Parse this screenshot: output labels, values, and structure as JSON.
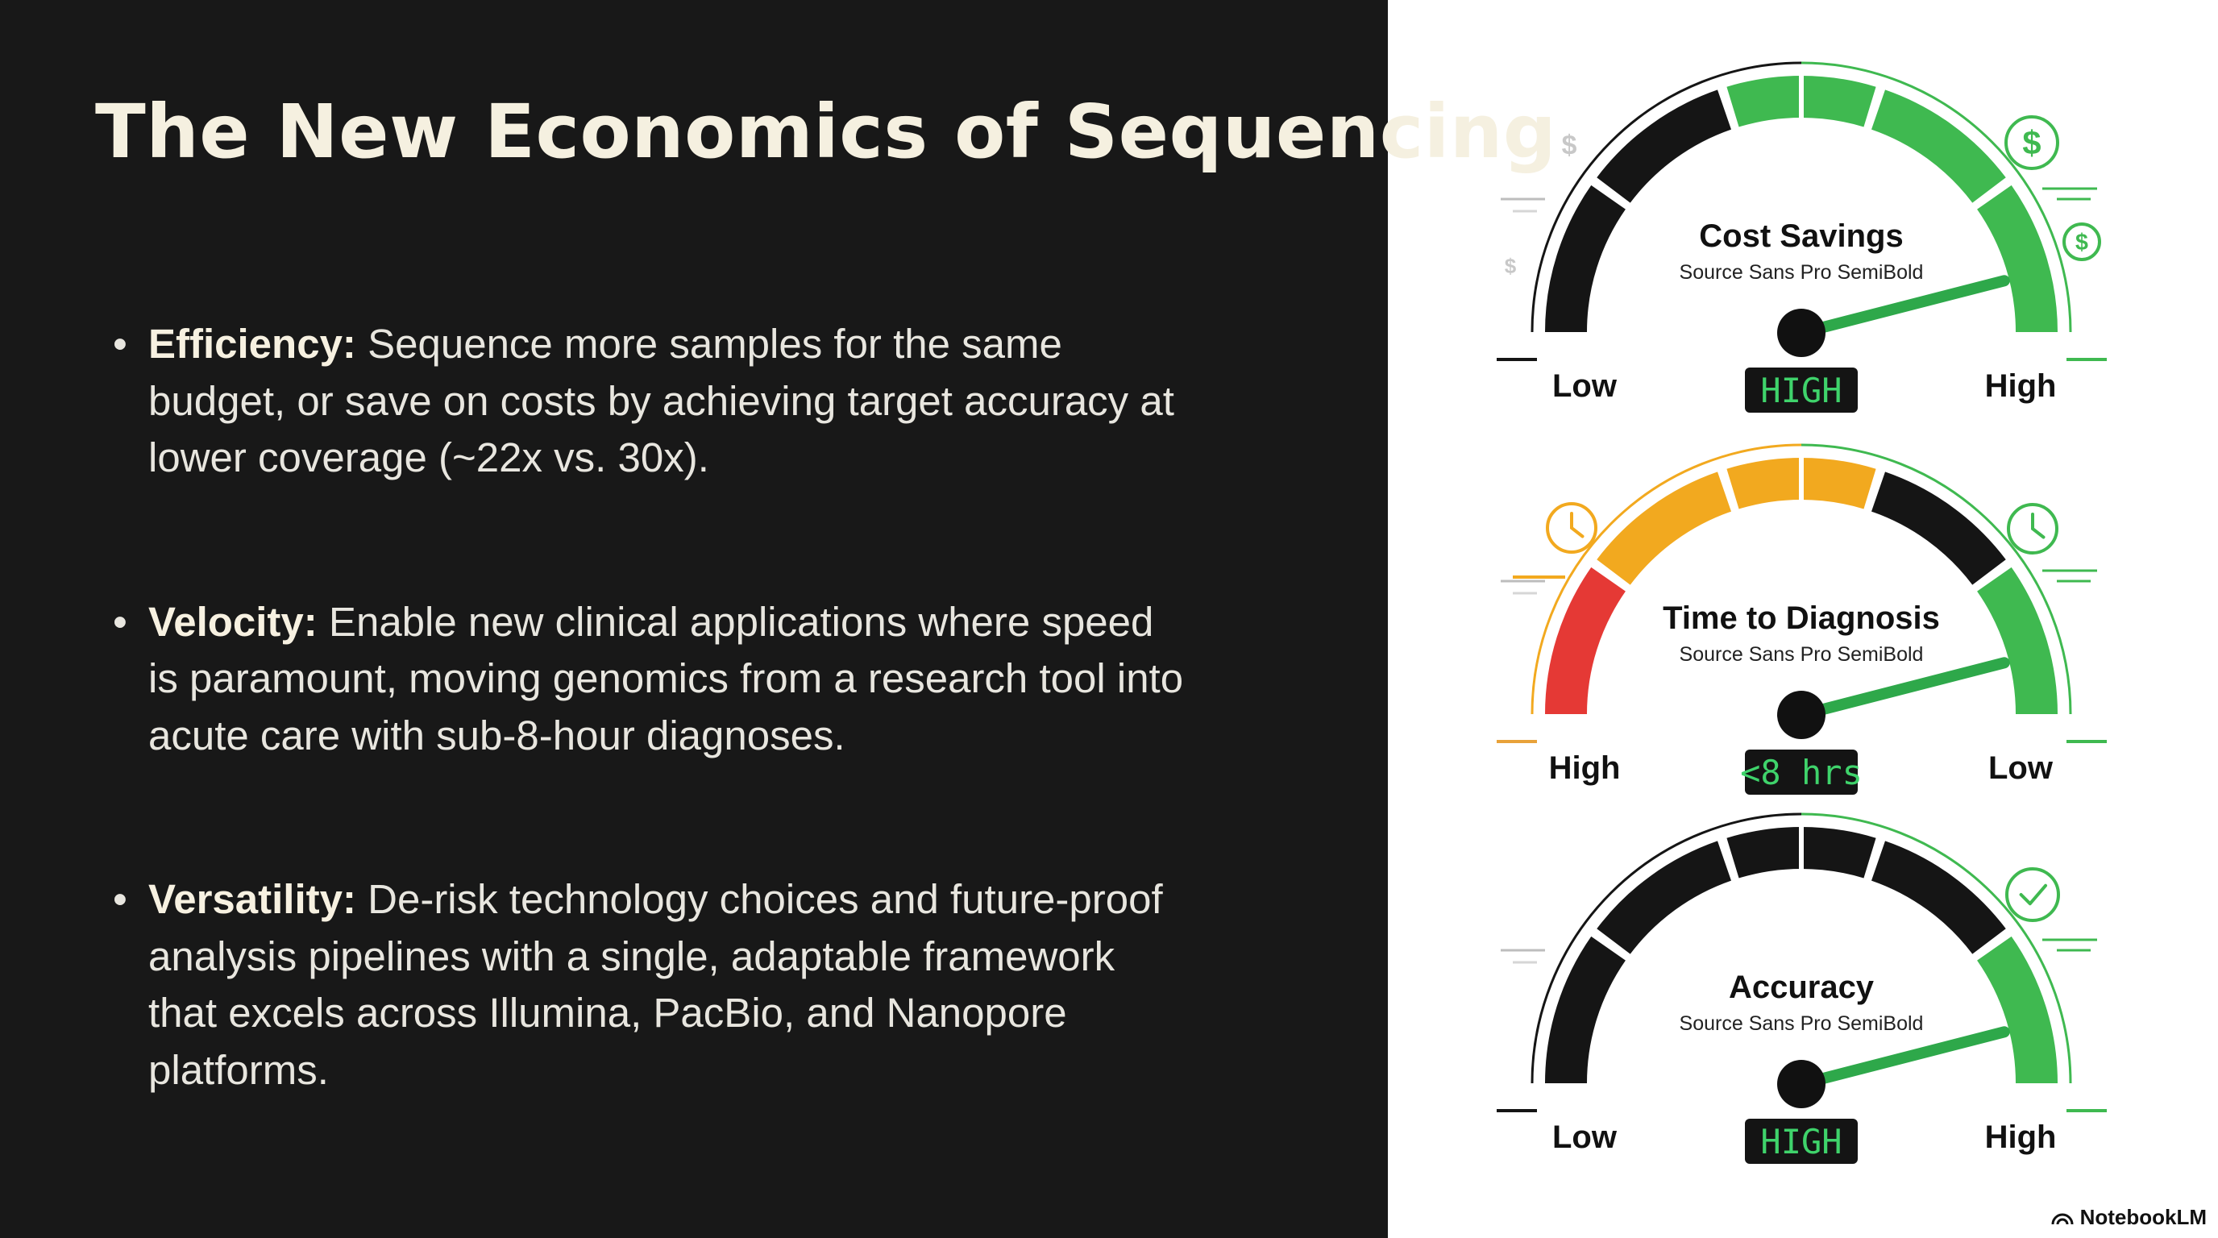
{
  "title": "The New Economics of Sequencing",
  "bullets": [
    {
      "term": "Efficiency:",
      "text": " Sequence more samples for the same budget, or save on costs by achieving target accuracy at lower coverage (~22x vs. 30x)."
    },
    {
      "term": "Velocity:",
      "text": " Enable new clinical applications where speed is paramount, moving genomics from a research tool into acute care with sub-8-hour diagnoses."
    },
    {
      "term": "Versatility:",
      "text": " De-risk technology choices and future-proof analysis pipelines with a single, adaptable framework that excels across Illumina, PacBio, and Nanopore platforms."
    }
  ],
  "gauges": [
    {
      "title": "Cost Savings",
      "subtitle": "Source Sans Pro SemiBold",
      "left_label": "Low",
      "right_label": "High",
      "readout": "HIGH",
      "level": 0.92,
      "segments": [
        "#151515",
        "#151515",
        "#3fb950",
        "#3fb950",
        "#3fb950"
      ],
      "icons": [
        "dollar-icon",
        "dollar-circle-icon"
      ]
    },
    {
      "title": "Time to Diagnosis",
      "subtitle": "Source Sans Pro SemiBold",
      "left_label": "High",
      "right_label": "Low",
      "readout": "<8 hrs",
      "level": 0.92,
      "segments": [
        "#e53935",
        "#f2a91f",
        "#f2a91f",
        "#151515",
        "#3fb950"
      ],
      "icons": [
        "clock-icon",
        "clock-icon"
      ]
    },
    {
      "title": "Accuracy",
      "subtitle": "Source Sans Pro SemiBold",
      "left_label": "Low",
      "right_label": "High",
      "readout": "HIGH",
      "level": 0.92,
      "segments": [
        "#151515",
        "#151515",
        "#151515",
        "#151515",
        "#3fb950"
      ],
      "icons": [
        "checkmark-circle-icon"
      ]
    }
  ],
  "brand": "NotebookLM",
  "colors": {
    "background_dark": "#181818",
    "title_text": "#f5f0e0",
    "green": "#3fb950",
    "amber": "#f2a91f",
    "red": "#e53935"
  }
}
